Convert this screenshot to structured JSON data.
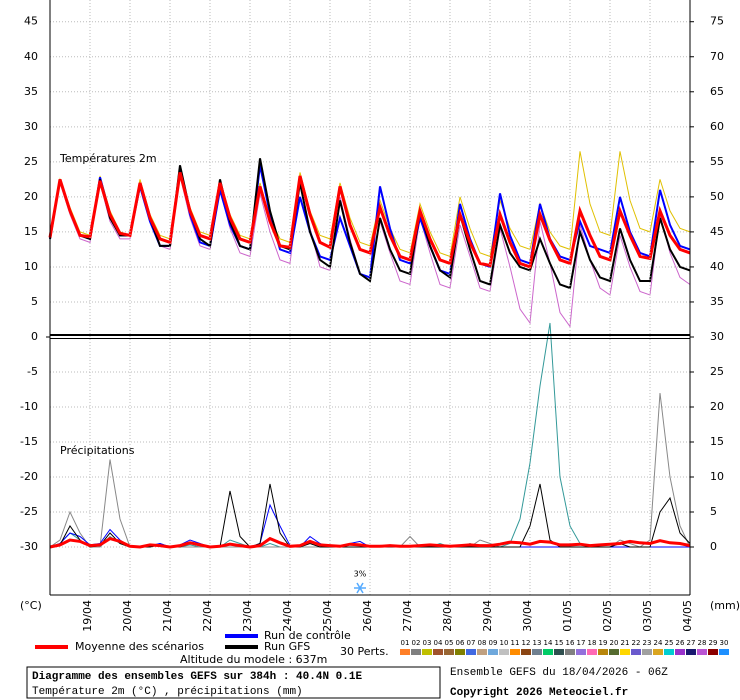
{
  "chart_data": [
    {
      "type": "line",
      "title": "Températures 2m",
      "x": [
        0,
        6,
        12,
        18,
        24,
        30,
        36,
        42,
        48,
        54,
        60,
        66,
        72,
        78,
        84,
        90,
        96,
        102,
        108,
        114,
        120,
        126,
        132,
        138,
        144,
        150,
        156,
        162,
        168,
        174,
        180,
        186,
        192,
        198,
        204,
        210,
        216,
        222,
        228,
        234,
        240,
        246,
        252,
        258,
        264,
        270,
        276,
        282,
        288,
        294,
        300,
        306,
        312,
        318,
        324,
        330,
        336,
        342,
        348,
        354,
        360,
        366,
        372,
        378,
        384
      ],
      "xlim": [
        0,
        384
      ],
      "ylim": [
        0,
        48.1
      ],
      "yticks": [
        0,
        5,
        10,
        15,
        20,
        25,
        30,
        35,
        40,
        45
      ],
      "y2lim": [
        30,
        78.1
      ],
      "y2ticks": [
        35,
        40,
        45,
        50,
        55,
        60,
        65,
        70,
        75
      ],
      "grid": true,
      "series": [
        {
          "color": "#e0c000",
          "values": [
            14.0,
            22.5,
            18.5,
            15.0,
            14.5,
            23.0,
            18.0,
            15.0,
            14.5,
            22.5,
            17.5,
            14.5,
            14.0,
            24.0,
            18.5,
            15.0,
            14.5,
            22.0,
            17.5,
            14.5,
            14.0,
            22.0,
            17.0,
            14.0,
            13.5,
            23.5,
            18.0,
            14.5,
            14.0,
            22.0,
            17.0,
            13.5,
            13.0,
            19.5,
            15.5,
            12.5,
            12.0,
            19.0,
            15.0,
            12.0,
            11.5,
            20.0,
            15.5,
            12.0,
            11.5,
            19.5,
            15.5,
            13.0,
            12.5,
            19.0,
            15.0,
            13.0,
            12.5,
            26.5,
            19.0,
            15.0,
            14.5,
            26.5,
            19.5,
            15.5,
            15.0,
            22.5,
            18.0,
            15.5,
            15.0
          ]
        },
        {
          "color": "#cc66cc",
          "values": [
            14.0,
            22.0,
            17.5,
            14.0,
            13.5,
            22.0,
            16.5,
            14.0,
            14.0,
            21.5,
            16.5,
            13.0,
            12.5,
            23.0,
            17.0,
            13.0,
            12.5,
            21.0,
            15.5,
            12.0,
            11.5,
            20.5,
            15.0,
            11.0,
            10.5,
            22.0,
            15.5,
            10.0,
            9.5,
            20.0,
            14.0,
            9.0,
            8.5,
            16.5,
            12.0,
            8.0,
            7.5,
            17.0,
            12.0,
            7.5,
            7.0,
            16.0,
            11.5,
            7.0,
            6.5,
            15.5,
            10.0,
            4.0,
            2.0,
            16.5,
            10.5,
            3.5,
            1.5,
            16.0,
            11.0,
            7.0,
            6.0,
            14.5,
            10.0,
            6.5,
            6.0,
            17.5,
            12.0,
            8.5,
            7.5
          ]
        },
        {
          "name": "Run de contrôle",
          "color": "#0000ff",
          "values": [
            14.0,
            22.5,
            18.0,
            14.5,
            14.0,
            22.8,
            17.5,
            14.5,
            14.5,
            21.5,
            16.5,
            13.0,
            13.0,
            24.0,
            17.5,
            13.5,
            13.0,
            21.0,
            16.0,
            13.0,
            12.5,
            24.5,
            17.5,
            12.5,
            12.0,
            20.0,
            15.0,
            11.5,
            11.0,
            17.0,
            13.0,
            9.0,
            8.5,
            21.5,
            15.5,
            11.0,
            10.5,
            17.0,
            13.0,
            9.5,
            9.0,
            19.0,
            14.0,
            10.5,
            10.0,
            20.5,
            14.5,
            11.0,
            10.5,
            19.0,
            14.0,
            11.5,
            11.0,
            16.5,
            13.0,
            12.5,
            12.0,
            20.0,
            15.0,
            12.0,
            11.5,
            21.0,
            16.0,
            13.0,
            12.5
          ]
        },
        {
          "name": "Run GFS",
          "color": "#000000",
          "values": [
            14.0,
            22.5,
            18.0,
            14.5,
            14.0,
            22.5,
            17.0,
            14.5,
            14.5,
            22.0,
            17.0,
            13.0,
            13.0,
            24.5,
            18.0,
            14.0,
            13.0,
            22.5,
            16.5,
            13.0,
            12.5,
            25.5,
            18.0,
            13.0,
            12.5,
            22.0,
            15.0,
            11.0,
            10.0,
            19.5,
            13.5,
            9.0,
            8.0,
            17.0,
            12.5,
            9.5,
            9.0,
            18.0,
            13.0,
            9.5,
            8.5,
            17.5,
            12.5,
            8.0,
            7.5,
            16.0,
            12.0,
            10.0,
            9.5,
            14.0,
            10.5,
            7.5,
            7.0,
            15.0,
            11.0,
            8.5,
            8.0,
            15.5,
            11.0,
            8.0,
            8.0,
            17.0,
            12.5,
            10.0,
            9.5
          ]
        },
        {
          "name": "Moyenne des scénarios",
          "color": "#ff0000",
          "values": [
            14.2,
            22.5,
            18.0,
            14.5,
            14.3,
            22.3,
            17.5,
            14.8,
            14.5,
            22.0,
            17.0,
            14.0,
            13.5,
            23.5,
            18.0,
            14.5,
            14.0,
            22.0,
            17.0,
            14.0,
            13.5,
            21.5,
            16.5,
            13.0,
            12.8,
            23.0,
            17.5,
            13.5,
            12.8,
            21.5,
            16.0,
            12.5,
            12.0,
            18.5,
            14.5,
            11.5,
            11.0,
            18.0,
            14.0,
            11.0,
            10.5,
            17.5,
            13.5,
            10.5,
            10.2,
            17.5,
            13.5,
            10.5,
            10.0,
            17.5,
            13.8,
            11.0,
            10.5,
            18.0,
            14.5,
            11.5,
            11.0,
            18.0,
            14.5,
            11.5,
            11.2,
            18.0,
            14.5,
            12.5,
            12.0
          ]
        }
      ]
    },
    {
      "type": "line",
      "title": "Précipitations",
      "y_label": "(°C)",
      "y2_label": "(mm)",
      "annotation": "3%",
      "x": [
        0,
        6,
        12,
        18,
        24,
        30,
        36,
        42,
        48,
        54,
        60,
        66,
        72,
        78,
        84,
        90,
        96,
        102,
        108,
        114,
        120,
        126,
        132,
        138,
        144,
        150,
        156,
        162,
        168,
        174,
        180,
        186,
        192,
        198,
        204,
        210,
        216,
        222,
        228,
        234,
        240,
        246,
        252,
        258,
        264,
        270,
        276,
        282,
        288,
        294,
        300,
        306,
        312,
        318,
        324,
        330,
        336,
        342,
        348,
        354,
        360,
        366,
        372,
        378,
        384
      ],
      "xlim": [
        0,
        384
      ],
      "xticks": [
        {
          "value": 24,
          "label": "19/04"
        },
        {
          "value": 48,
          "label": "20/04"
        },
        {
          "value": 72,
          "label": "21/04"
        },
        {
          "value": 96,
          "label": "22/04"
        },
        {
          "value": 120,
          "label": "23/04"
        },
        {
          "value": 144,
          "label": "24/04"
        },
        {
          "value": 168,
          "label": "25/04"
        },
        {
          "value": 192,
          "label": "26/04"
        },
        {
          "value": 216,
          "label": "27/04"
        },
        {
          "value": 240,
          "label": "28/04"
        },
        {
          "value": 264,
          "label": "29/04"
        },
        {
          "value": 288,
          "label": "30/04"
        },
        {
          "value": 312,
          "label": "01/05"
        },
        {
          "value": 336,
          "label": "02/05"
        },
        {
          "value": 360,
          "label": "03/05"
        },
        {
          "value": 384,
          "label": "04/05"
        }
      ],
      "ylim": [
        -36.9,
        0
      ],
      "yticks": [
        -30,
        -25,
        -20,
        -15,
        -10,
        -5
      ],
      "y2lim": [
        -6.9,
        30
      ],
      "y2ticks": [
        0,
        5,
        10,
        15,
        20,
        25,
        30
      ],
      "grid": true,
      "series": [
        {
          "color": "#339999",
          "axis": "y2",
          "values": [
            0,
            0.5,
            2.0,
            1.0,
            0,
            0,
            1.5,
            0.5,
            0,
            0,
            0,
            0.5,
            0,
            0,
            0.3,
            0,
            0,
            0,
            1.0,
            0.5,
            0,
            0,
            0.5,
            0,
            0,
            0,
            0,
            0,
            0,
            0,
            0,
            0,
            0,
            0,
            0,
            0,
            0,
            0,
            0,
            0.5,
            0,
            0,
            0.5,
            0,
            0,
            0,
            0.5,
            4.0,
            12.0,
            23.0,
            32.0,
            10.0,
            3.0,
            0.5,
            0,
            0,
            0,
            0,
            0,
            0,
            0,
            0,
            0,
            0,
            0
          ]
        },
        {
          "color": "#888888",
          "axis": "y2",
          "values": [
            0,
            1.0,
            5.0,
            2.0,
            0,
            0,
            12.5,
            4.0,
            0,
            0,
            0,
            0.5,
            0,
            0,
            0,
            0,
            0,
            0,
            0,
            0,
            0,
            0,
            0,
            0,
            0,
            0,
            0,
            0,
            0,
            0,
            0,
            0,
            0,
            0,
            0,
            0,
            1.5,
            0,
            0,
            0,
            0,
            0,
            0,
            1.0,
            0.5,
            0,
            0,
            0,
            0,
            0,
            0,
            0,
            0,
            0,
            0,
            0,
            0,
            1.0,
            0.5,
            0,
            1.0,
            22.0,
            10.0,
            3.0,
            0
          ]
        },
        {
          "color": "#0000ff",
          "axis": "y2",
          "values": [
            0,
            0.5,
            2.0,
            1.5,
            0.3,
            0.5,
            2.5,
            1.0,
            0,
            0,
            0.2,
            0.5,
            0,
            0.3,
            1.0,
            0.5,
            0,
            0,
            0.5,
            0.2,
            0,
            0.5,
            6.0,
            3.0,
            0.2,
            0,
            1.5,
            0.5,
            0,
            0,
            0.5,
            0.8,
            0,
            0,
            0.3,
            0,
            0,
            0,
            0,
            0,
            0,
            0,
            0,
            0,
            0,
            0,
            0,
            0,
            0,
            0,
            0,
            0,
            0,
            0,
            0,
            0,
            0,
            0,
            0,
            0,
            0,
            0,
            0,
            0,
            0
          ]
        },
        {
          "color": "#000000",
          "axis": "y2",
          "values": [
            0,
            0.3,
            3.0,
            1.0,
            0,
            0.2,
            2.0,
            0.5,
            0,
            0,
            0,
            0.3,
            0,
            0,
            0.5,
            0.2,
            0,
            0,
            8.0,
            1.5,
            0,
            0.5,
            9.0,
            2.0,
            0,
            0,
            0.5,
            0,
            0,
            0,
            0,
            0,
            0,
            0,
            0,
            0,
            0,
            0,
            0,
            0,
            0,
            0,
            0,
            0,
            0,
            0,
            0,
            0,
            3.0,
            9.0,
            1.0,
            0,
            0,
            0,
            0,
            0,
            0,
            0.5,
            0,
            0,
            0,
            5.0,
            7.0,
            2.0,
            0.5
          ]
        },
        {
          "color": "#ff0000",
          "axis": "y2",
          "values": [
            0,
            0.3,
            1.0,
            0.8,
            0.2,
            0.3,
            1.2,
            0.8,
            0.1,
            0,
            0.3,
            0.2,
            0,
            0.2,
            0.6,
            0.3,
            0,
            0.1,
            0.4,
            0.2,
            0,
            0.2,
            1.2,
            0.6,
            0.1,
            0.2,
            0.8,
            0.3,
            0.2,
            0.1,
            0.4,
            0.3,
            0.1,
            0.1,
            0.2,
            0.1,
            0.1,
            0.2,
            0.3,
            0.2,
            0.1,
            0.2,
            0.3,
            0.2,
            0.2,
            0.4,
            0.7,
            0.6,
            0.4,
            0.8,
            0.7,
            0.3,
            0.3,
            0.4,
            0.2,
            0.3,
            0.4,
            0.5,
            0.8,
            0.6,
            0.5,
            0.9,
            0.6,
            0.5,
            0.2
          ]
        }
      ]
    }
  ],
  "perturbations": {
    "label": "30 Perts.",
    "members": [
      "01",
      "02",
      "03",
      "04",
      "05",
      "06",
      "07",
      "08",
      "09",
      "10",
      "11",
      "12",
      "13",
      "14",
      "15",
      "16",
      "17",
      "18",
      "19",
      "20",
      "21",
      "22",
      "23",
      "24",
      "25",
      "26",
      "27",
      "28",
      "29",
      "30"
    ],
    "colors": [
      "#ff7f27",
      "#7f7f7f",
      "#c0c000",
      "#a0522d",
      "#996633",
      "#808000",
      "#4169e1",
      "#c0a080",
      "#6fa8dc",
      "#c0c0c0",
      "#ff8c00",
      "#8b4513",
      "#708090",
      "#00cc66",
      "#2f4f4f",
      "#808080",
      "#9370db",
      "#ff69b4",
      "#b8860b",
      "#556b2f",
      "#ffd700",
      "#6a5acd",
      "#a0a0a0",
      "#daa520",
      "#00ced1",
      "#9932cc",
      "#191970",
      "#ba55d3",
      "#8b0000",
      "#1e90ff"
    ]
  },
  "footer": {
    "altitude": "Altitude du modele : 637m",
    "title": "Diagramme des ensembles GEFS sur 384h : 40.4N 0.1E",
    "subtitle": "Température 2m (°C) , précipitations (mm)",
    "run": "Ensemble GEFS du 18/04/2026 - 06Z",
    "copyright": "Copyright 2026 Meteociel.fr"
  }
}
